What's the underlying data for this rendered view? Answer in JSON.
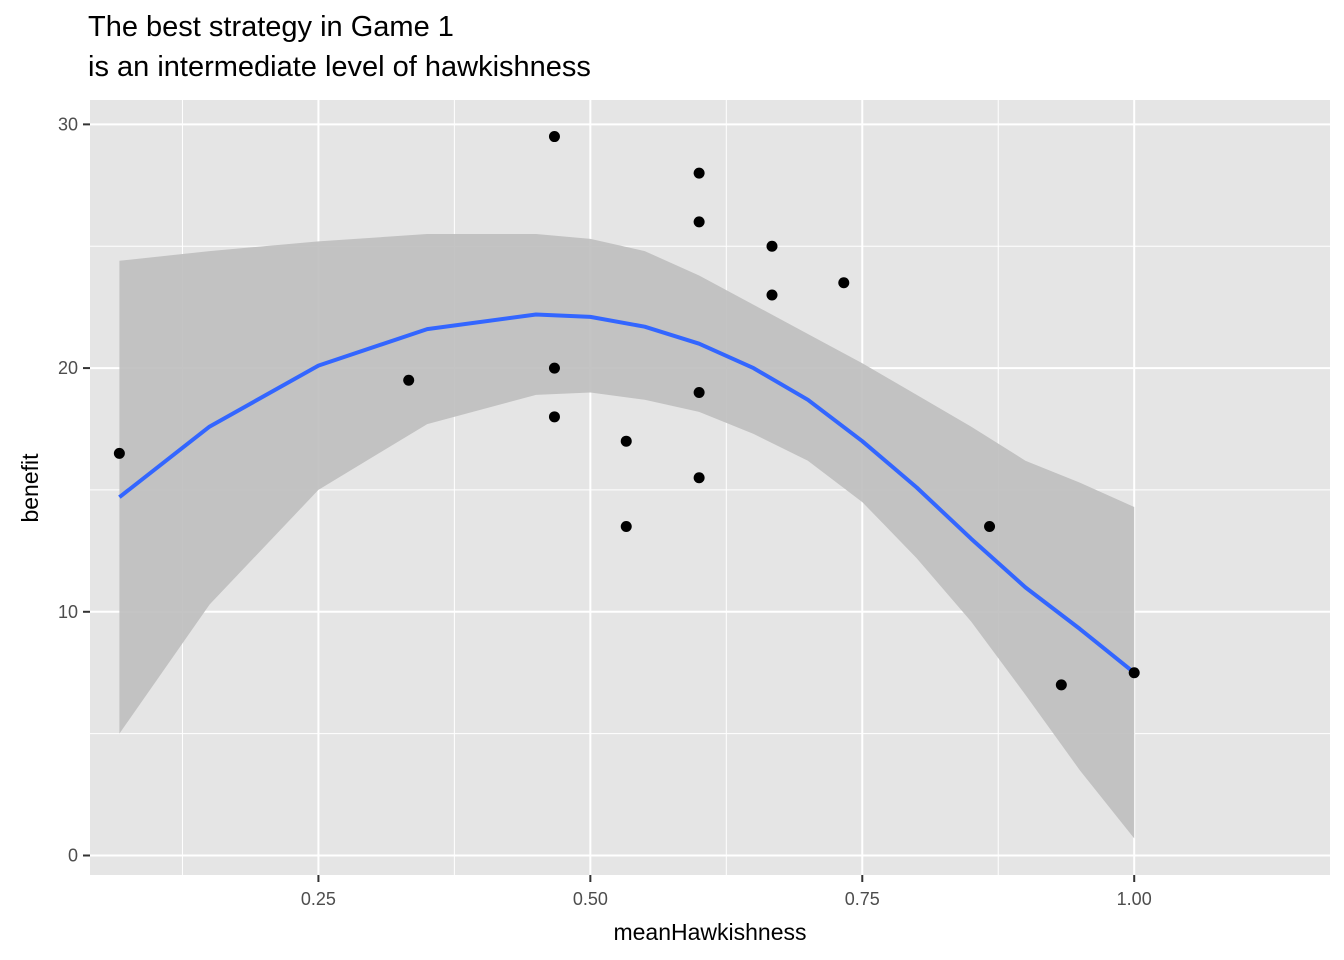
{
  "chart_data": {
    "type": "scatter",
    "title": "The best strategy in Game 1",
    "subtitle": "is an intermediate level of hawkishness",
    "xlabel": "meanHawkishness",
    "ylabel": "benefit",
    "xlim": [
      0.04,
      1.18
    ],
    "ylim": [
      -0.8,
      31
    ],
    "x_ticks": [
      0.25,
      0.5,
      0.75,
      1.0
    ],
    "x_tick_labels": [
      "0.25",
      "0.50",
      "0.75",
      "1.00"
    ],
    "y_ticks": [
      0,
      10,
      20,
      30
    ],
    "y_tick_labels": [
      "0",
      "10",
      "20",
      "30"
    ],
    "grid": true,
    "legend": "none",
    "points": [
      {
        "x": 0.067,
        "y": 16.5
      },
      {
        "x": 0.333,
        "y": 19.5
      },
      {
        "x": 0.467,
        "y": 29.5
      },
      {
        "x": 0.467,
        "y": 20.0
      },
      {
        "x": 0.467,
        "y": 18.0
      },
      {
        "x": 0.533,
        "y": 17.0
      },
      {
        "x": 0.533,
        "y": 13.5
      },
      {
        "x": 0.6,
        "y": 28.0
      },
      {
        "x": 0.6,
        "y": 26.0
      },
      {
        "x": 0.6,
        "y": 19.0
      },
      {
        "x": 0.6,
        "y": 15.5
      },
      {
        "x": 0.667,
        "y": 25.0
      },
      {
        "x": 0.667,
        "y": 23.0
      },
      {
        "x": 0.733,
        "y": 23.5
      },
      {
        "x": 0.867,
        "y": 13.5
      },
      {
        "x": 0.933,
        "y": 7.0
      },
      {
        "x": 1.0,
        "y": 7.5
      }
    ],
    "smooth": {
      "x": [
        0.067,
        0.15,
        0.25,
        0.35,
        0.45,
        0.5,
        0.55,
        0.6,
        0.65,
        0.7,
        0.75,
        0.8,
        0.85,
        0.9,
        0.95,
        1.0
      ],
      "fit": [
        14.7,
        17.6,
        20.1,
        21.6,
        22.2,
        22.1,
        21.7,
        21.0,
        20.0,
        18.7,
        17.0,
        15.1,
        13.0,
        11.0,
        9.3,
        7.5
      ],
      "lower": [
        5.0,
        10.3,
        15.0,
        17.7,
        18.9,
        19.0,
        18.7,
        18.2,
        17.3,
        16.2,
        14.5,
        12.2,
        9.6,
        6.6,
        3.5,
        0.7
      ],
      "upper": [
        24.4,
        24.8,
        25.2,
        25.5,
        25.5,
        25.3,
        24.8,
        23.8,
        22.6,
        21.4,
        20.2,
        18.9,
        17.6,
        16.2,
        15.3,
        14.3
      ]
    },
    "colors": {
      "panel": "#e5e5e5",
      "grid_major": "#ffffff",
      "ribbon": "#bebebe",
      "line": "#3366ff",
      "point": "#000000"
    }
  }
}
